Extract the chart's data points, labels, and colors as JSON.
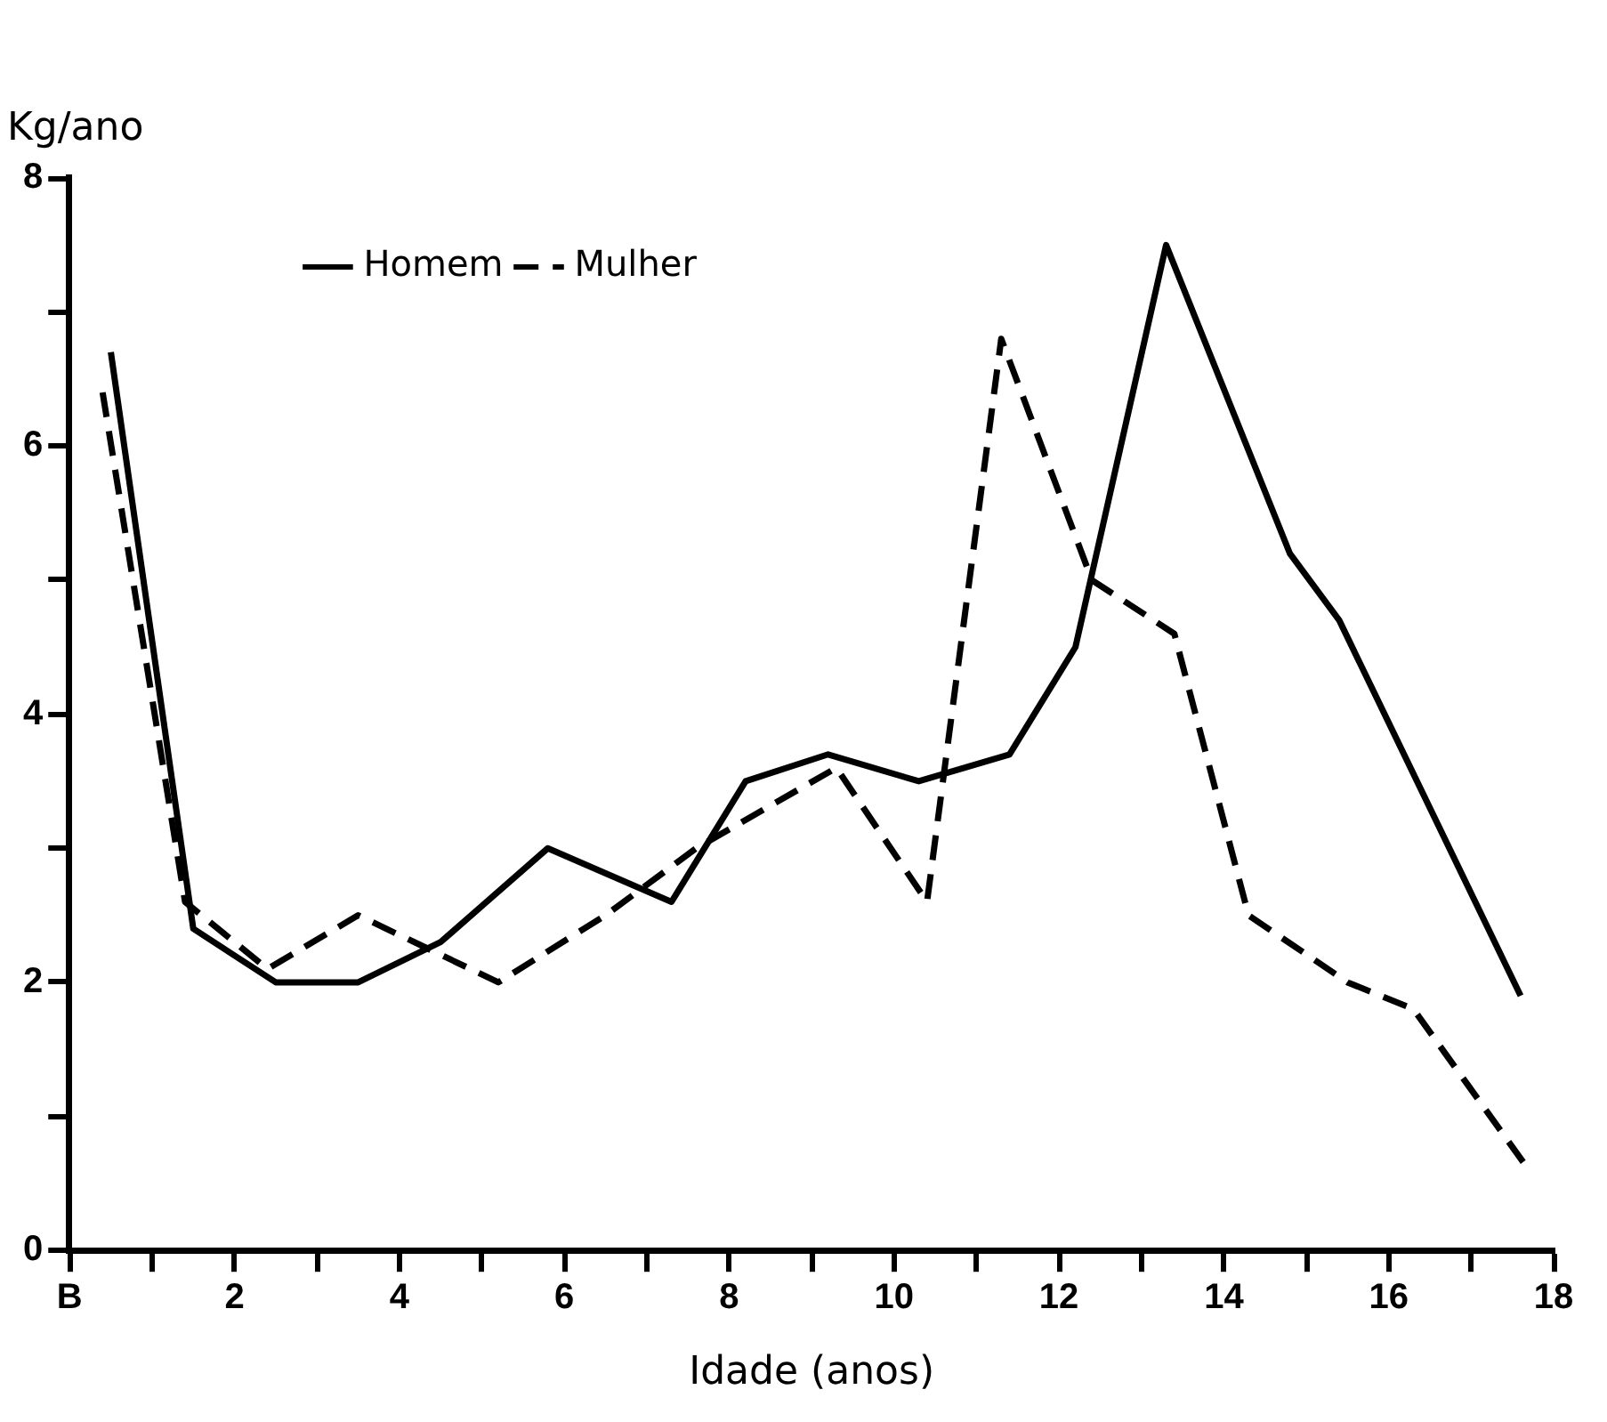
{
  "chart_data": {
    "type": "line",
    "xlabel": "Idade (anos)",
    "ylabel": "Kg/ano",
    "xlim": [
      0,
      18
    ],
    "ylim": [
      0,
      8
    ],
    "xticks": [
      {
        "value": 0,
        "label": "B"
      },
      {
        "value": 1,
        "label": null
      },
      2,
      {
        "value": 3,
        "label": null
      },
      4,
      {
        "value": 5,
        "label": null
      },
      6,
      {
        "value": 7,
        "label": null
      },
      8,
      {
        "value": 9,
        "label": null
      },
      10,
      {
        "value": 11,
        "label": null
      },
      12,
      {
        "value": 13,
        "label": null
      },
      14,
      {
        "value": 15,
        "label": null
      },
      16,
      {
        "value": 17,
        "label": null
      },
      18
    ],
    "yticks": [
      0,
      {
        "value": 1,
        "label": null
      },
      2,
      {
        "value": 3,
        "label": null
      },
      4,
      {
        "value": 5,
        "label": null
      },
      6,
      {
        "value": 7,
        "label": null
      },
      8
    ],
    "legend": "top left",
    "marker": "none",
    "series": [
      {
        "name": "Homem",
        "color": "#000000",
        "line_style": "solid",
        "x": [
          0.5,
          1.5,
          2.5,
          3.5,
          4.5,
          5.8,
          7.3,
          8.2,
          9.2,
          10.3,
          11.4,
          12.2,
          13.3,
          14.8,
          15.4,
          17.6
        ],
        "values": [
          6.7,
          2.4,
          2.0,
          2.0,
          2.3,
          3.0,
          2.6,
          3.5,
          3.7,
          3.5,
          3.7,
          4.5,
          7.5,
          5.2,
          4.7,
          1.9
        ]
      },
      {
        "name": "Mulher",
        "color": "#000000",
        "line_style": "dashed",
        "x": [
          0.4,
          1.4,
          2.4,
          3.5,
          5.2,
          6.5,
          7.6,
          9.3,
          10.4,
          11.3,
          12.4,
          13.4,
          14.3,
          15.5,
          16.3,
          17.7
        ],
        "values": [
          6.4,
          2.6,
          2.1,
          2.5,
          2.0,
          2.5,
          3.0,
          3.6,
          2.6,
          6.8,
          5.0,
          4.6,
          2.5,
          2.0,
          1.8,
          0.6
        ]
      }
    ]
  }
}
